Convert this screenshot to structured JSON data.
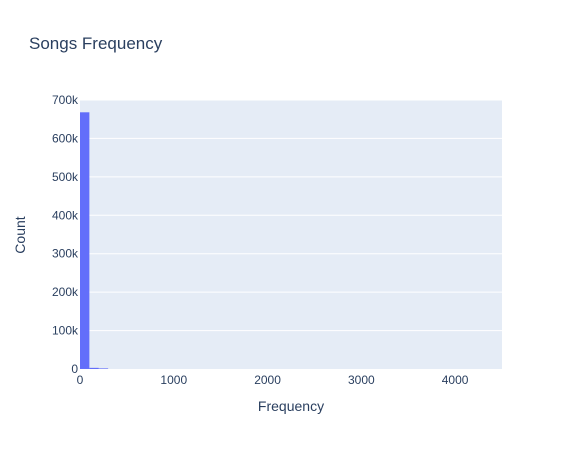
{
  "chart_data": {
    "type": "bar",
    "title": "Songs Frequency",
    "xlabel": "Frequency",
    "ylabel": "Count",
    "xlim": [
      0,
      4500
    ],
    "ylim": [
      0,
      700000
    ],
    "x_ticks": [
      {
        "value": 0,
        "label": "0"
      },
      {
        "value": 1000,
        "label": "1000"
      },
      {
        "value": 2000,
        "label": "2000"
      },
      {
        "value": 3000,
        "label": "3000"
      },
      {
        "value": 4000,
        "label": "4000"
      }
    ],
    "y_ticks": [
      {
        "value": 0,
        "label": "0"
      },
      {
        "value": 100000,
        "label": "100k"
      },
      {
        "value": 200000,
        "label": "200k"
      },
      {
        "value": 300000,
        "label": "300k"
      },
      {
        "value": 400000,
        "label": "400k"
      },
      {
        "value": 500000,
        "label": "500k"
      },
      {
        "value": 600000,
        "label": "600k"
      },
      {
        "value": 700000,
        "label": "700k"
      }
    ],
    "bins": [
      {
        "start": 0,
        "end": 100,
        "count": 668000
      },
      {
        "start": 100,
        "end": 200,
        "count": 3000
      },
      {
        "start": 200,
        "end": 300,
        "count": 1000
      }
    ],
    "grid": true,
    "colors": {
      "bar": "#636efa",
      "plot_background": "#e5ecf6",
      "grid": "#ffffff",
      "text": "#2a3f5f"
    }
  }
}
